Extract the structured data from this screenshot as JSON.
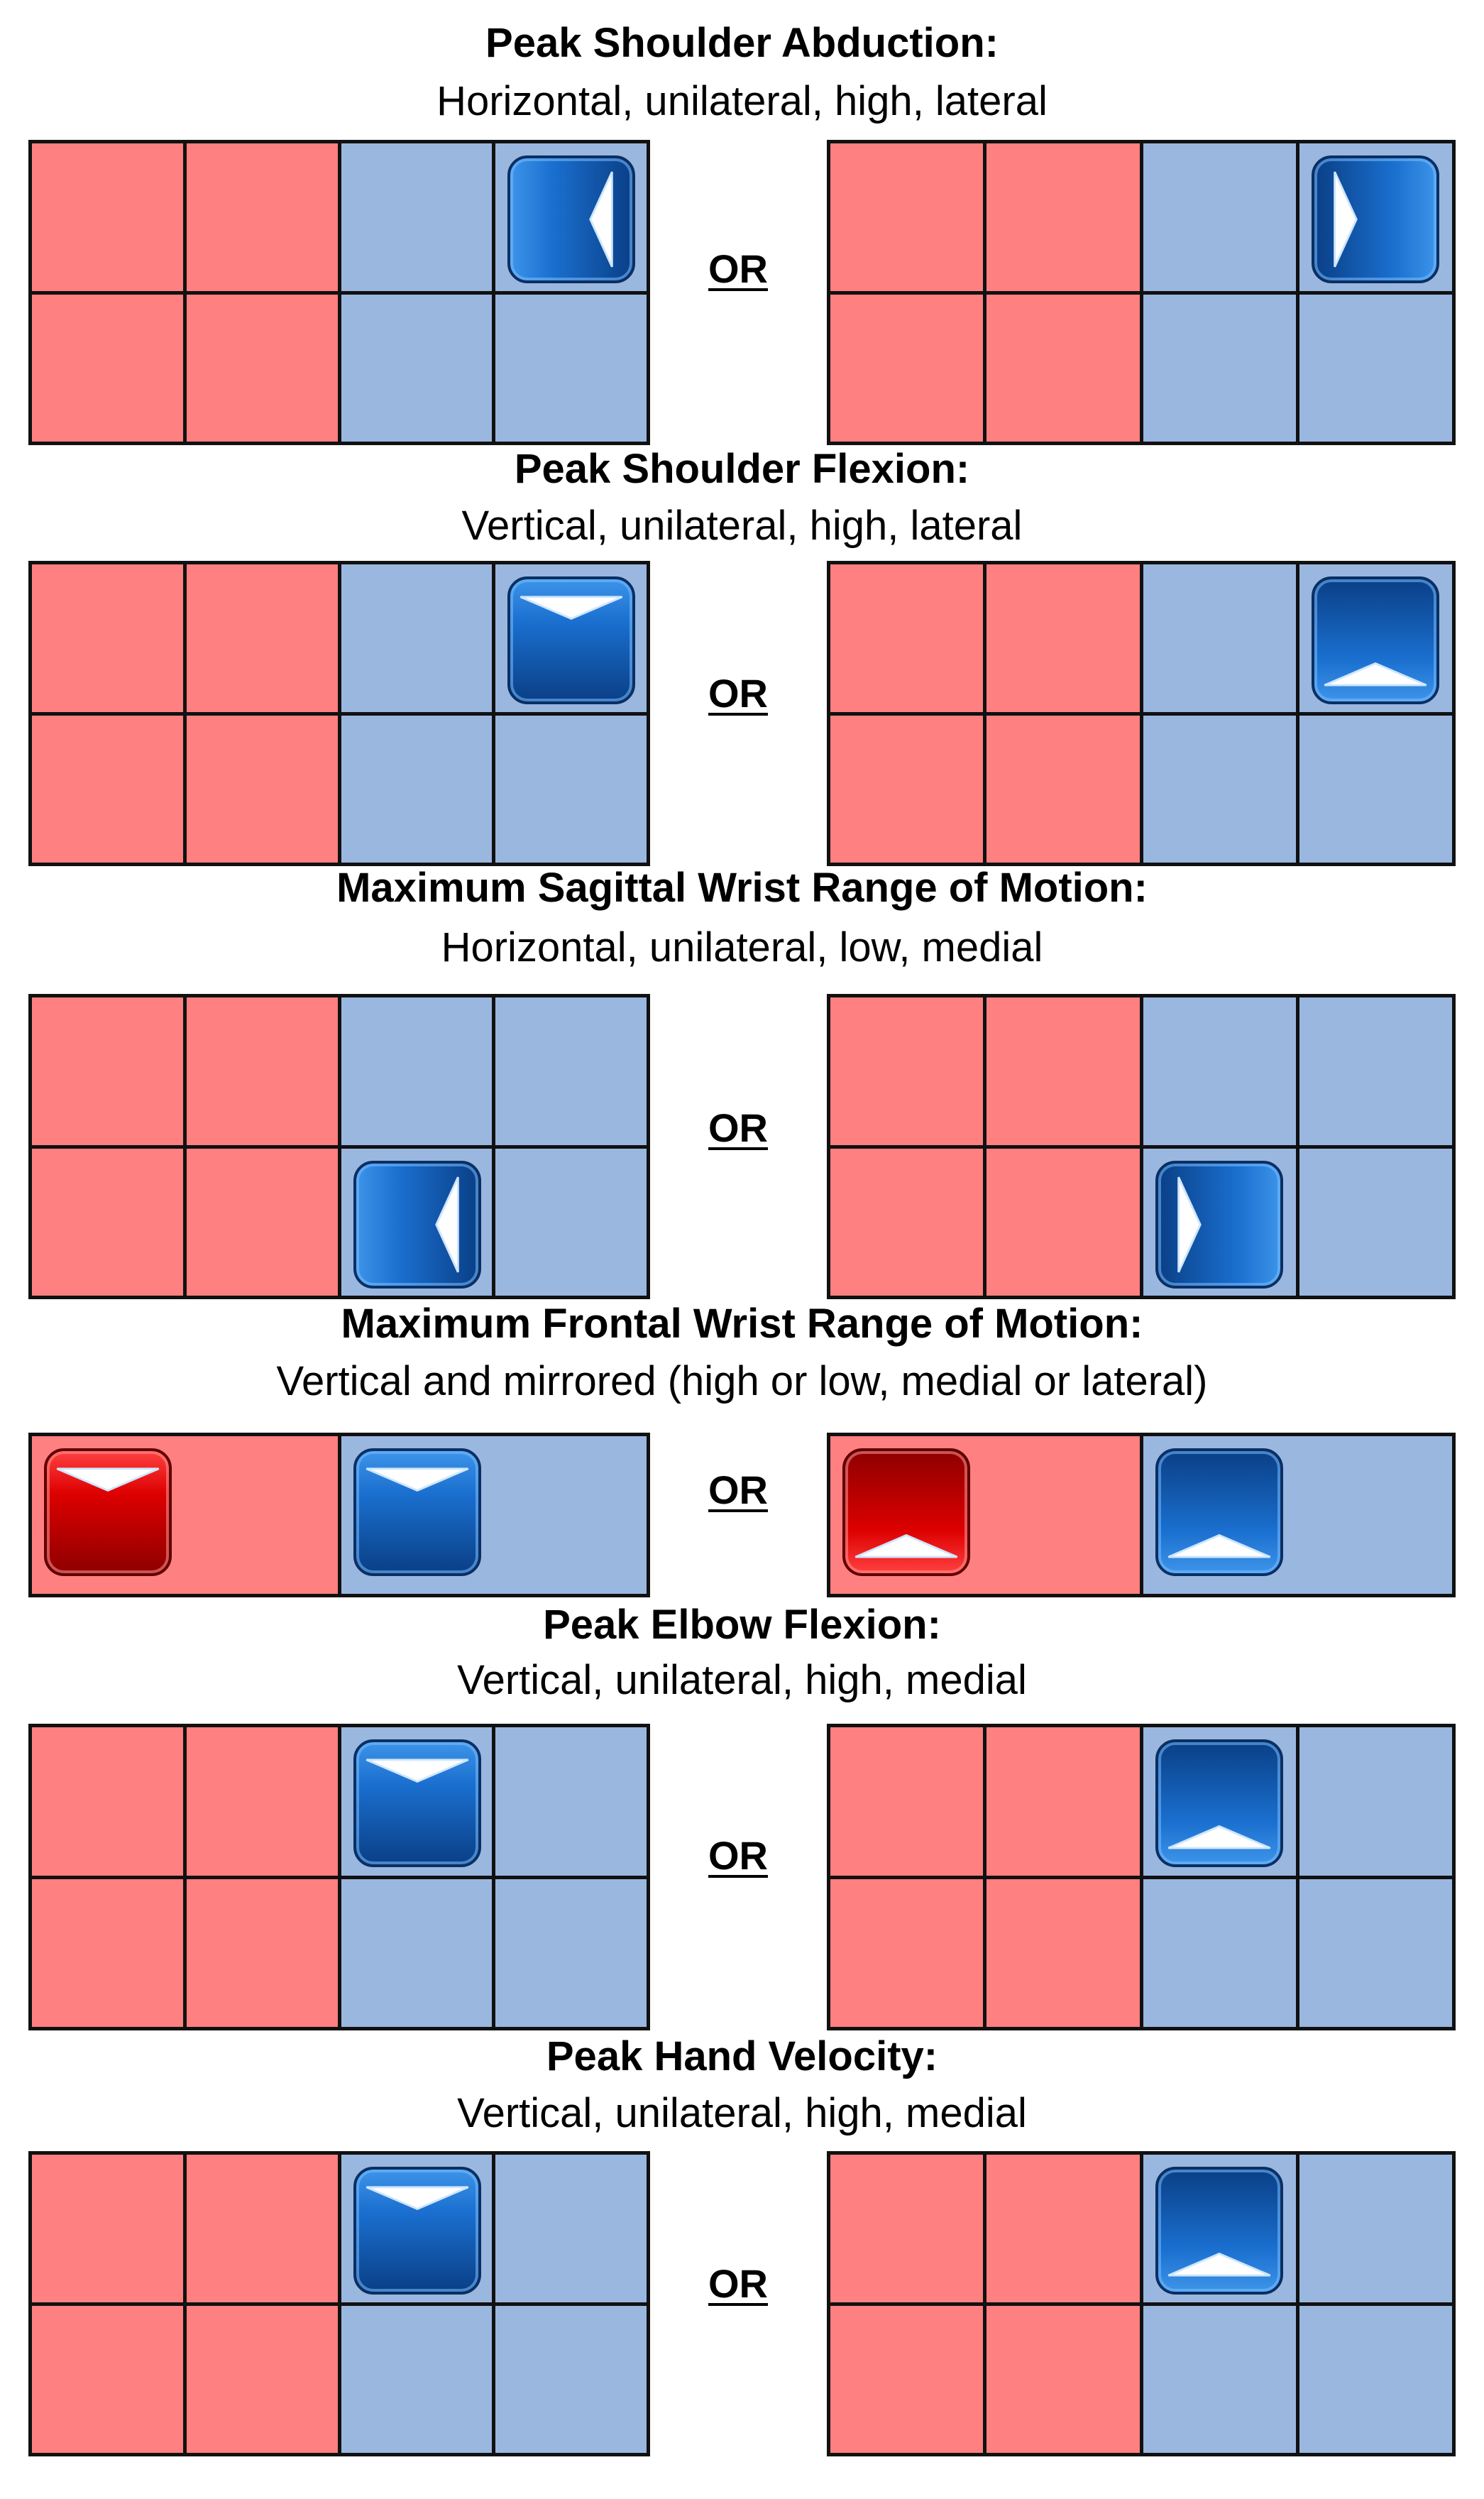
{
  "or_label": "OR",
  "colors": {
    "left_side": "#ff8080",
    "right_side": "#9ab7e0",
    "blue_button": "#0d5bb3",
    "red_button": "#dd0000"
  },
  "sections": [
    {
      "title": "Peak Shoulder Abduction:",
      "subtitle": "Horizontal, unilateral, high, lateral",
      "left": {
        "buttons": [
          {
            "cell": "top-right",
            "color": "blue",
            "arrow": "left-arrow-icon"
          }
        ]
      },
      "right": {
        "buttons": [
          {
            "cell": "top-right",
            "color": "blue",
            "arrow": "right-arrow-icon"
          }
        ]
      }
    },
    {
      "title": "Peak Shoulder Flexion:",
      "subtitle": "Vertical, unilateral, high, lateral",
      "left": {
        "buttons": [
          {
            "cell": "top-right",
            "color": "blue",
            "arrow": "down-arrow-icon"
          }
        ]
      },
      "right": {
        "buttons": [
          {
            "cell": "top-right",
            "color": "blue",
            "arrow": "up-arrow-icon"
          }
        ]
      }
    },
    {
      "title": "Maximum Sagittal Wrist Range of Motion:",
      "subtitle": "Horizontal, unilateral, low, medial",
      "left": {
        "buttons": [
          {
            "cell": "bottom-medial",
            "color": "blue",
            "arrow": "left-arrow-icon"
          }
        ]
      },
      "right": {
        "buttons": [
          {
            "cell": "bottom-medial",
            "color": "blue",
            "arrow": "right-arrow-icon"
          }
        ]
      }
    },
    {
      "title": "Maximum Frontal Wrist Range of Motion:",
      "subtitle": "Vertical and mirrored (high or low, medial or lateral)",
      "left": {
        "buttons": [
          {
            "cell": "left",
            "color": "red",
            "arrow": "down-arrow-icon"
          },
          {
            "cell": "right",
            "color": "blue",
            "arrow": "down-arrow-icon"
          }
        ]
      },
      "right": {
        "buttons": [
          {
            "cell": "left",
            "color": "red",
            "arrow": "up-arrow-icon"
          },
          {
            "cell": "right",
            "color": "blue",
            "arrow": "up-arrow-icon"
          }
        ]
      }
    },
    {
      "title": "Peak Elbow Flexion:",
      "subtitle": "Vertical, unilateral, high, medial",
      "left": {
        "buttons": [
          {
            "cell": "top-medial",
            "color": "blue",
            "arrow": "down-arrow-icon"
          }
        ]
      },
      "right": {
        "buttons": [
          {
            "cell": "top-medial",
            "color": "blue",
            "arrow": "up-arrow-icon"
          }
        ]
      }
    },
    {
      "title": "Peak Hand Velocity:",
      "subtitle": "Vertical, unilateral, high, medial",
      "left": {
        "buttons": [
          {
            "cell": "top-medial",
            "color": "blue",
            "arrow": "down-arrow-icon"
          }
        ]
      },
      "right": {
        "buttons": [
          {
            "cell": "top-medial",
            "color": "blue",
            "arrow": "up-arrow-icon"
          }
        ]
      }
    }
  ]
}
